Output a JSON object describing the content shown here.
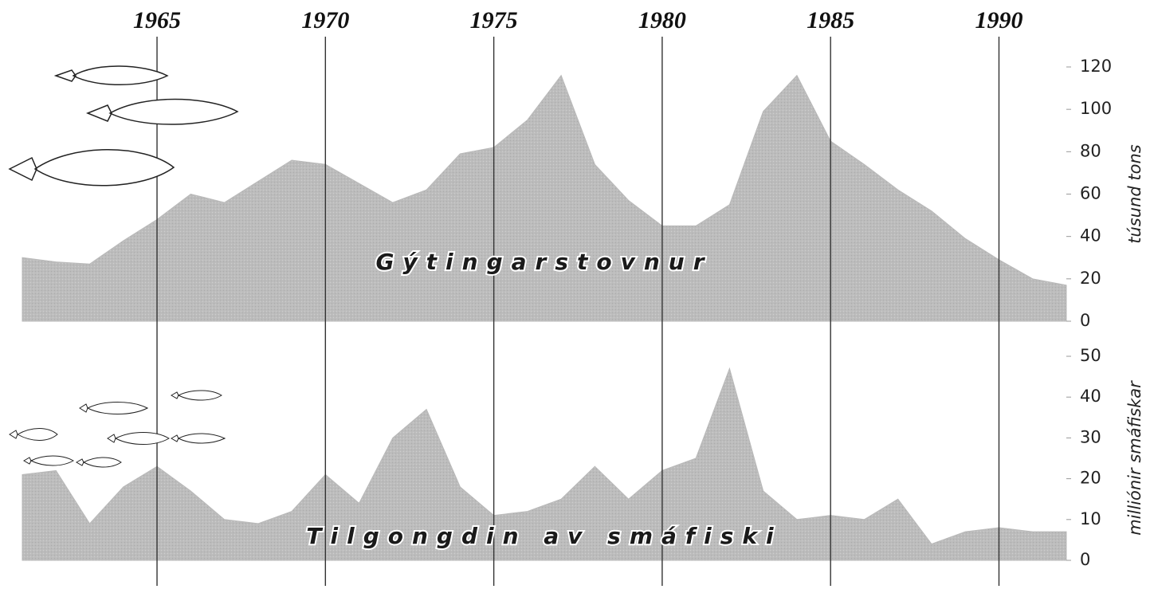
{
  "chart_data": [
    {
      "type": "area",
      "color": "#b9b9b9",
      "x": [
        1961,
        1962,
        1963,
        1964,
        1965,
        1966,
        1967,
        1968,
        1969,
        1970,
        1971,
        1972,
        1973,
        1974,
        1975,
        1976,
        1977,
        1978,
        1979,
        1980,
        1981,
        1982,
        1983,
        1984,
        1985,
        1986,
        1987,
        1988,
        1989,
        1990,
        1991,
        1992
      ],
      "values": [
        30,
        28,
        27,
        38,
        48,
        60,
        56,
        66,
        76,
        74,
        65,
        56,
        62,
        79,
        82,
        95,
        116,
        74,
        57,
        45,
        45,
        55,
        99,
        116,
        85,
        74,
        62,
        52,
        39,
        29,
        20,
        17
      ],
      "xlim": [
        1961,
        1992
      ],
      "xticks": [
        1965,
        1970,
        1975,
        1980,
        1985,
        1990
      ],
      "ylim": [
        0,
        120
      ],
      "yticks": [
        0,
        20,
        40,
        60,
        80,
        100,
        120
      ],
      "y_label": "túsund tons",
      "annotation": "Gýtingarstovnur"
    },
    {
      "type": "area",
      "color": "#b9b9b9",
      "x": [
        1961,
        1962,
        1963,
        1964,
        1965,
        1966,
        1967,
        1968,
        1969,
        1970,
        1971,
        1972,
        1973,
        1974,
        1975,
        1976,
        1977,
        1978,
        1979,
        1980,
        1981,
        1982,
        1983,
        1984,
        1985,
        1986,
        1987,
        1988,
        1989,
        1990,
        1991,
        1992
      ],
      "values": [
        21,
        22,
        9,
        18,
        23,
        17,
        10,
        9,
        12,
        21,
        14,
        30,
        37,
        18,
        11,
        12,
        15,
        23,
        15,
        22,
        25,
        47,
        17,
        10,
        11,
        10,
        15,
        4,
        7,
        8,
        7,
        7
      ],
      "xlim": [
        1961,
        1992
      ],
      "ylim": [
        0,
        50
      ],
      "yticks": [
        0,
        10,
        20,
        30,
        40,
        50
      ],
      "y_label": "milliónir smáfiskar",
      "annotation": "Tilgongdin av smáfiski"
    }
  ]
}
